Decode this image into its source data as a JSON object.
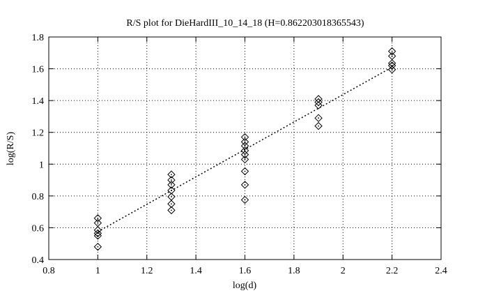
{
  "figure": {
    "background_color": "#ffffff",
    "foreground_color": "#000000"
  },
  "chart_data": {
    "type": "scatter",
    "title": "R/S plot for DieHardIII_10_14_18 (H=0.862203018365543)",
    "xlabel": "log(d)",
    "ylabel": "log(R/S)",
    "xlim": [
      0.8,
      2.4
    ],
    "ylim": [
      0.4,
      1.8
    ],
    "x_ticks": [
      0.8,
      1,
      1.2,
      1.4,
      1.6,
      1.8,
      2,
      2.2,
      2.4
    ],
    "x_tick_labels": [
      "0.8",
      "1",
      "1.2",
      "1.4",
      "1.6",
      "1.8",
      "2",
      "2.2",
      "2.4"
    ],
    "y_ticks": [
      0.4,
      0.6,
      0.8,
      1,
      1.2,
      1.4,
      1.6,
      1.8
    ],
    "y_tick_labels": [
      "0.4",
      "0.6",
      "0.8",
      "1",
      "1.2",
      "1.4",
      "1.6",
      "1.8"
    ],
    "grid": true,
    "grid_style": "dotted",
    "legend": "none",
    "marker": "open-diamond-with-center-dot",
    "H": 0.862203018365543,
    "series": [
      {
        "log_d": 1.0,
        "values": [
          0.66,
          0.63,
          0.585,
          0.565,
          0.55,
          0.48
        ]
      },
      {
        "log_d": 1.3,
        "values": [
          0.935,
          0.9,
          0.87,
          0.835,
          0.795,
          0.75,
          0.71
        ]
      },
      {
        "log_d": 1.6,
        "values": [
          1.17,
          1.14,
          1.115,
          1.085,
          1.06,
          1.03,
          0.955,
          0.87,
          0.775
        ]
      },
      {
        "log_d": 1.9,
        "values": [
          1.41,
          1.39,
          1.37,
          1.29,
          1.24
        ]
      },
      {
        "log_d": 2.2,
        "values": [
          1.71,
          1.68,
          1.635,
          1.62,
          1.595
        ]
      }
    ],
    "fit_line": {
      "style": "dotted",
      "x_start": 1.0,
      "y_start": 0.575,
      "x_end": 2.2,
      "y_end": 1.61
    }
  }
}
